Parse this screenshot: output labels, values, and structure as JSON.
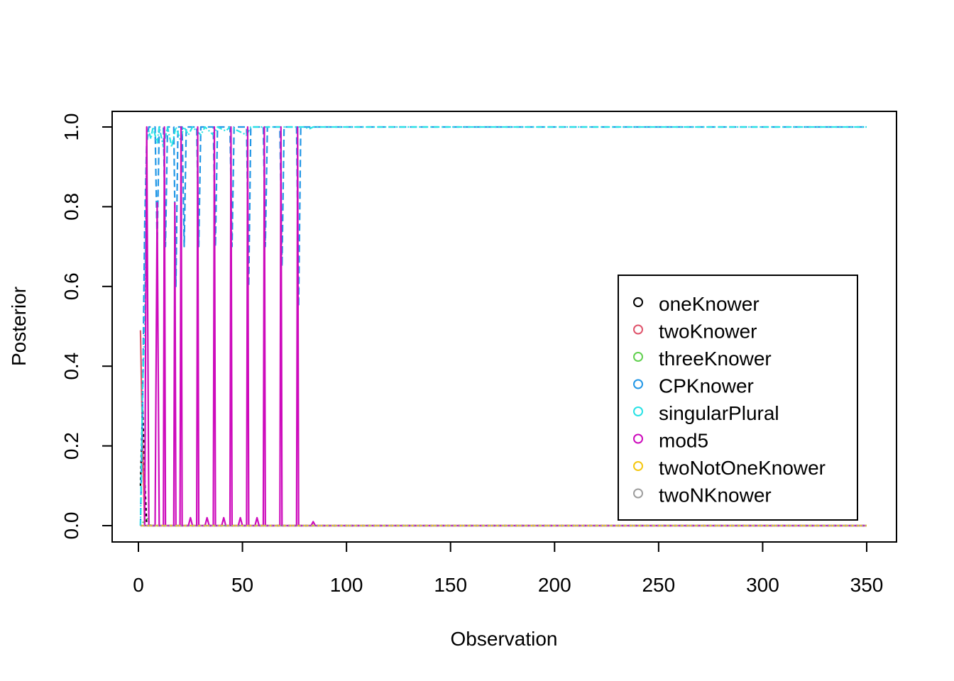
{
  "chart_data": {
    "type": "line",
    "title": "",
    "xlabel": "Observation",
    "ylabel": "Posterior",
    "xlim": [
      0,
      350
    ],
    "ylim": [
      0.0,
      1.0
    ],
    "x_ticks": [
      0,
      50,
      100,
      150,
      200,
      250,
      300,
      350
    ],
    "x_tick_labels": [
      "0",
      "50",
      "100",
      "150",
      "200",
      "250",
      "300",
      "350"
    ],
    "y_ticks": [
      0.0,
      0.2,
      0.4,
      0.6,
      0.8,
      1.0
    ],
    "y_tick_labels": [
      "0.0",
      "0.2",
      "0.4",
      "0.6",
      "0.8",
      "1.0"
    ],
    "grid": false,
    "legend_position": "right",
    "series": [
      {
        "name": "oneKnower",
        "color": "#000000",
        "dash": "4,4",
        "points": [
          [
            1,
            0.1
          ],
          [
            2,
            0.3
          ],
          [
            3,
            0.12
          ],
          [
            4,
            0.0
          ],
          [
            5,
            0.0
          ],
          [
            350,
            0.0
          ]
        ]
      },
      {
        "name": "twoKnower",
        "color": "#DF536B",
        "dash": "",
        "points": [
          [
            1,
            0.49
          ],
          [
            2,
            0.2
          ],
          [
            3,
            0.0
          ],
          [
            350,
            0.0
          ]
        ]
      },
      {
        "name": "threeKnower",
        "color": "#61D04F",
        "dash": "2,3",
        "points": [
          [
            1,
            0.0
          ],
          [
            4,
            0.02
          ],
          [
            6,
            0.0
          ],
          [
            350,
            0.0
          ]
        ]
      },
      {
        "name": "CPKnower",
        "color": "#2297E6",
        "dash": "10,5",
        "points": [
          [
            1,
            0.0
          ],
          [
            2,
            0.3
          ],
          [
            3,
            0.75
          ],
          [
            4,
            0.97
          ],
          [
            5,
            1.0
          ],
          [
            8,
            1.0
          ],
          [
            9,
            0.7
          ],
          [
            10,
            1.0
          ],
          [
            12,
            1.0
          ],
          [
            13,
            0.7
          ],
          [
            14,
            1.0
          ],
          [
            17,
            1.0
          ],
          [
            18,
            0.6
          ],
          [
            19,
            1.0
          ],
          [
            21,
            1.0
          ],
          [
            22,
            0.7
          ],
          [
            23,
            1.0
          ],
          [
            28,
            1.0
          ],
          [
            29,
            0.7
          ],
          [
            30,
            1.0
          ],
          [
            36,
            1.0
          ],
          [
            37,
            0.7
          ],
          [
            38,
            1.0
          ],
          [
            44,
            1.0
          ],
          [
            45,
            0.7
          ],
          [
            46,
            1.0
          ],
          [
            52,
            1.0
          ],
          [
            53,
            0.6
          ],
          [
            54,
            1.0
          ],
          [
            60,
            1.0
          ],
          [
            61,
            0.7
          ],
          [
            62,
            1.0
          ],
          [
            68,
            1.0
          ],
          [
            69,
            0.65
          ],
          [
            70,
            1.0
          ],
          [
            76,
            1.0
          ],
          [
            77,
            0.55
          ],
          [
            78,
            1.0
          ],
          [
            350,
            1.0
          ]
        ]
      },
      {
        "name": "singularPlural",
        "color": "#28E2E5",
        "dash": "8,3,2,3",
        "points": [
          [
            1,
            0.0
          ],
          [
            2,
            0.35
          ],
          [
            3,
            0.5
          ],
          [
            4,
            0.96
          ],
          [
            5,
            0.99
          ],
          [
            6,
            0.97
          ],
          [
            7,
            1.0
          ],
          [
            9,
            0.96
          ],
          [
            10,
            1.0
          ],
          [
            12,
            0.95
          ],
          [
            14,
            1.0
          ],
          [
            16,
            0.95
          ],
          [
            18,
            1.0
          ],
          [
            20,
            0.97
          ],
          [
            22,
            1.0
          ],
          [
            24,
            0.98
          ],
          [
            26,
            1.0
          ],
          [
            30,
            0.98
          ],
          [
            32,
            1.0
          ],
          [
            36,
            0.98
          ],
          [
            38,
            1.0
          ],
          [
            42,
            0.99
          ],
          [
            44,
            1.0
          ],
          [
            52,
            0.98
          ],
          [
            54,
            1.0
          ],
          [
            80,
            1.0
          ],
          [
            82,
            0.995
          ],
          [
            84,
            1.0
          ],
          [
            350,
            1.0
          ]
        ]
      },
      {
        "name": "mod5",
        "color": "#CD0BBC",
        "dash": "",
        "points": [
          [
            1,
            0.0
          ],
          [
            3,
            0.0
          ],
          [
            4,
            1.0
          ],
          [
            5,
            0.0
          ],
          [
            8,
            0.0
          ],
          [
            9,
            0.81
          ],
          [
            10,
            0.0
          ],
          [
            12,
            0.0
          ],
          [
            12.5,
            1.0
          ],
          [
            13,
            0.0
          ],
          [
            17,
            0.0
          ],
          [
            17.5,
            0.81
          ],
          [
            18,
            0.0
          ],
          [
            20,
            0.0
          ],
          [
            20.5,
            1.0
          ],
          [
            21,
            0.0
          ],
          [
            24,
            0.0
          ],
          [
            25,
            0.02
          ],
          [
            26,
            0.0
          ],
          [
            28,
            0.0
          ],
          [
            28.5,
            1.0
          ],
          [
            29,
            0.0
          ],
          [
            32,
            0.0
          ],
          [
            33,
            0.02
          ],
          [
            34,
            0.0
          ],
          [
            36,
            0.0
          ],
          [
            36.5,
            1.0
          ],
          [
            37,
            0.0
          ],
          [
            40,
            0.0
          ],
          [
            41,
            0.02
          ],
          [
            42,
            0.0
          ],
          [
            44,
            0.0
          ],
          [
            44.5,
            1.0
          ],
          [
            45,
            0.0
          ],
          [
            48,
            0.0
          ],
          [
            49,
            0.02
          ],
          [
            50,
            0.0
          ],
          [
            52,
            0.0
          ],
          [
            52.5,
            1.0
          ],
          [
            53,
            0.0
          ],
          [
            56,
            0.0
          ],
          [
            57,
            0.02
          ],
          [
            58,
            0.0
          ],
          [
            60,
            0.0
          ],
          [
            60.5,
            1.0
          ],
          [
            61,
            0.0
          ],
          [
            68,
            0.0
          ],
          [
            68.5,
            1.0
          ],
          [
            69,
            0.0
          ],
          [
            76,
            0.0
          ],
          [
            76.5,
            1.0
          ],
          [
            77,
            0.0
          ],
          [
            83,
            0.0
          ],
          [
            84,
            0.01
          ],
          [
            85,
            0.0
          ],
          [
            350,
            0.0
          ]
        ]
      },
      {
        "name": "twoNotOneKnower",
        "color": "#F5C710",
        "dash": "6,4",
        "points": [
          [
            1,
            0.0
          ],
          [
            350,
            0.0
          ]
        ]
      },
      {
        "name": "twoNKnower",
        "color": "#9E9E9E",
        "dash": "2,2",
        "points": [
          [
            1,
            0.0
          ],
          [
            350,
            0.0
          ]
        ]
      }
    ]
  }
}
